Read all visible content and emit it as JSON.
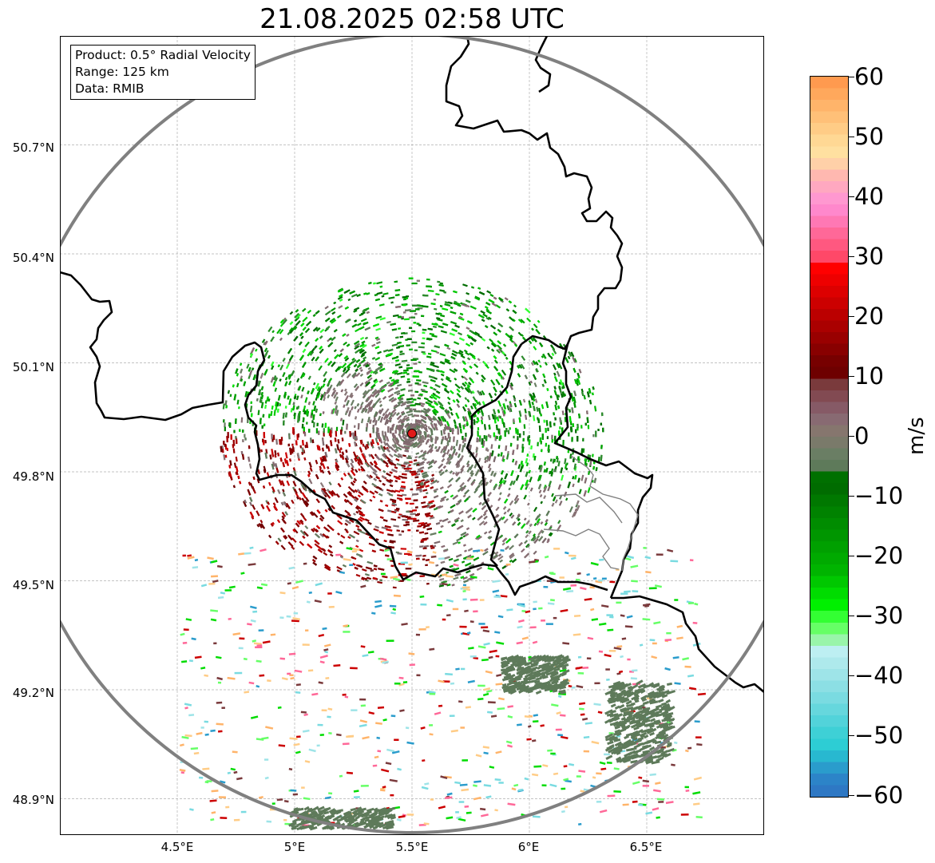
{
  "title": "21.08.2025 02:58 UTC",
  "info_box": {
    "product": "Product: 0.5° Radial Velocity",
    "range": "Range: 125 km",
    "data": "Data: RMIB"
  },
  "map": {
    "lon_range": [
      4.0,
      7.0
    ],
    "lat_range": [
      48.8,
      51.0
    ],
    "gridlines": true,
    "lat_ticks": [
      "50.7°N",
      "50.4°N",
      "50.1°N",
      "49.8°N",
      "49.5°N",
      "49.2°N",
      "48.9°N"
    ],
    "lat_values": [
      50.7,
      50.4,
      50.1,
      49.8,
      49.5,
      49.2,
      48.9
    ],
    "lon_ticks": [
      "4.5°E",
      "5°E",
      "5.5°E",
      "6°E",
      "6.5°E"
    ],
    "lon_values": [
      4.5,
      5.0,
      5.5,
      6.0,
      6.5
    ],
    "radar_site": {
      "lon": 5.5,
      "lat": 49.91,
      "color": "#e11a1a"
    },
    "range_ring_color": "#808080",
    "border_color": "#000000"
  },
  "colorbar": {
    "label": "m/s",
    "ticks": [
      "60",
      "50",
      "40",
      "30",
      "20",
      "10",
      "0",
      "−10",
      "−20",
      "−30",
      "−40",
      "−50",
      "−60"
    ],
    "tick_values": [
      60,
      50,
      40,
      30,
      20,
      10,
      0,
      -10,
      -20,
      -30,
      -40,
      -50,
      -60
    ],
    "vmin": -60,
    "vmax": 60,
    "colors_top_to_bottom": [
      "#ff9a4f",
      "#ffa85c",
      "#ffb46a",
      "#ffc078",
      "#ffcc86",
      "#ffd894",
      "#ffe0a0",
      "#ffd0a8",
      "#ffb8b0",
      "#ffa8c0",
      "#ff98d0",
      "#ff88cc",
      "#ff78b4",
      "#ff6898",
      "#ff5880",
      "#ff4868",
      "#ff0000",
      "#ee0000",
      "#dd0000",
      "#cc0000",
      "#bb0000",
      "#aa0000",
      "#990000",
      "#880000",
      "#770000",
      "#6e0000",
      "#7a3a3c",
      "#824a52",
      "#865a66",
      "#886a72",
      "#86766e",
      "#7a7a6a",
      "#6a7e64",
      "#5e7a5a",
      "#007000",
      "#006c00",
      "#007800",
      "#008200",
      "#008c00",
      "#009600",
      "#00a000",
      "#00aa00",
      "#00b400",
      "#00c800",
      "#00dc00",
      "#00f000",
      "#33ff33",
      "#66ff66",
      "#99f5aa",
      "#bdeff2",
      "#aee9ec",
      "#9ee4e8",
      "#8cdfe4",
      "#7adbe1",
      "#66d7dd",
      "#52d3da",
      "#3ed0d6",
      "#2dcdd4",
      "#28b8d0",
      "#2a9ccc",
      "#2c84c8",
      "#2e78c4"
    ]
  }
}
